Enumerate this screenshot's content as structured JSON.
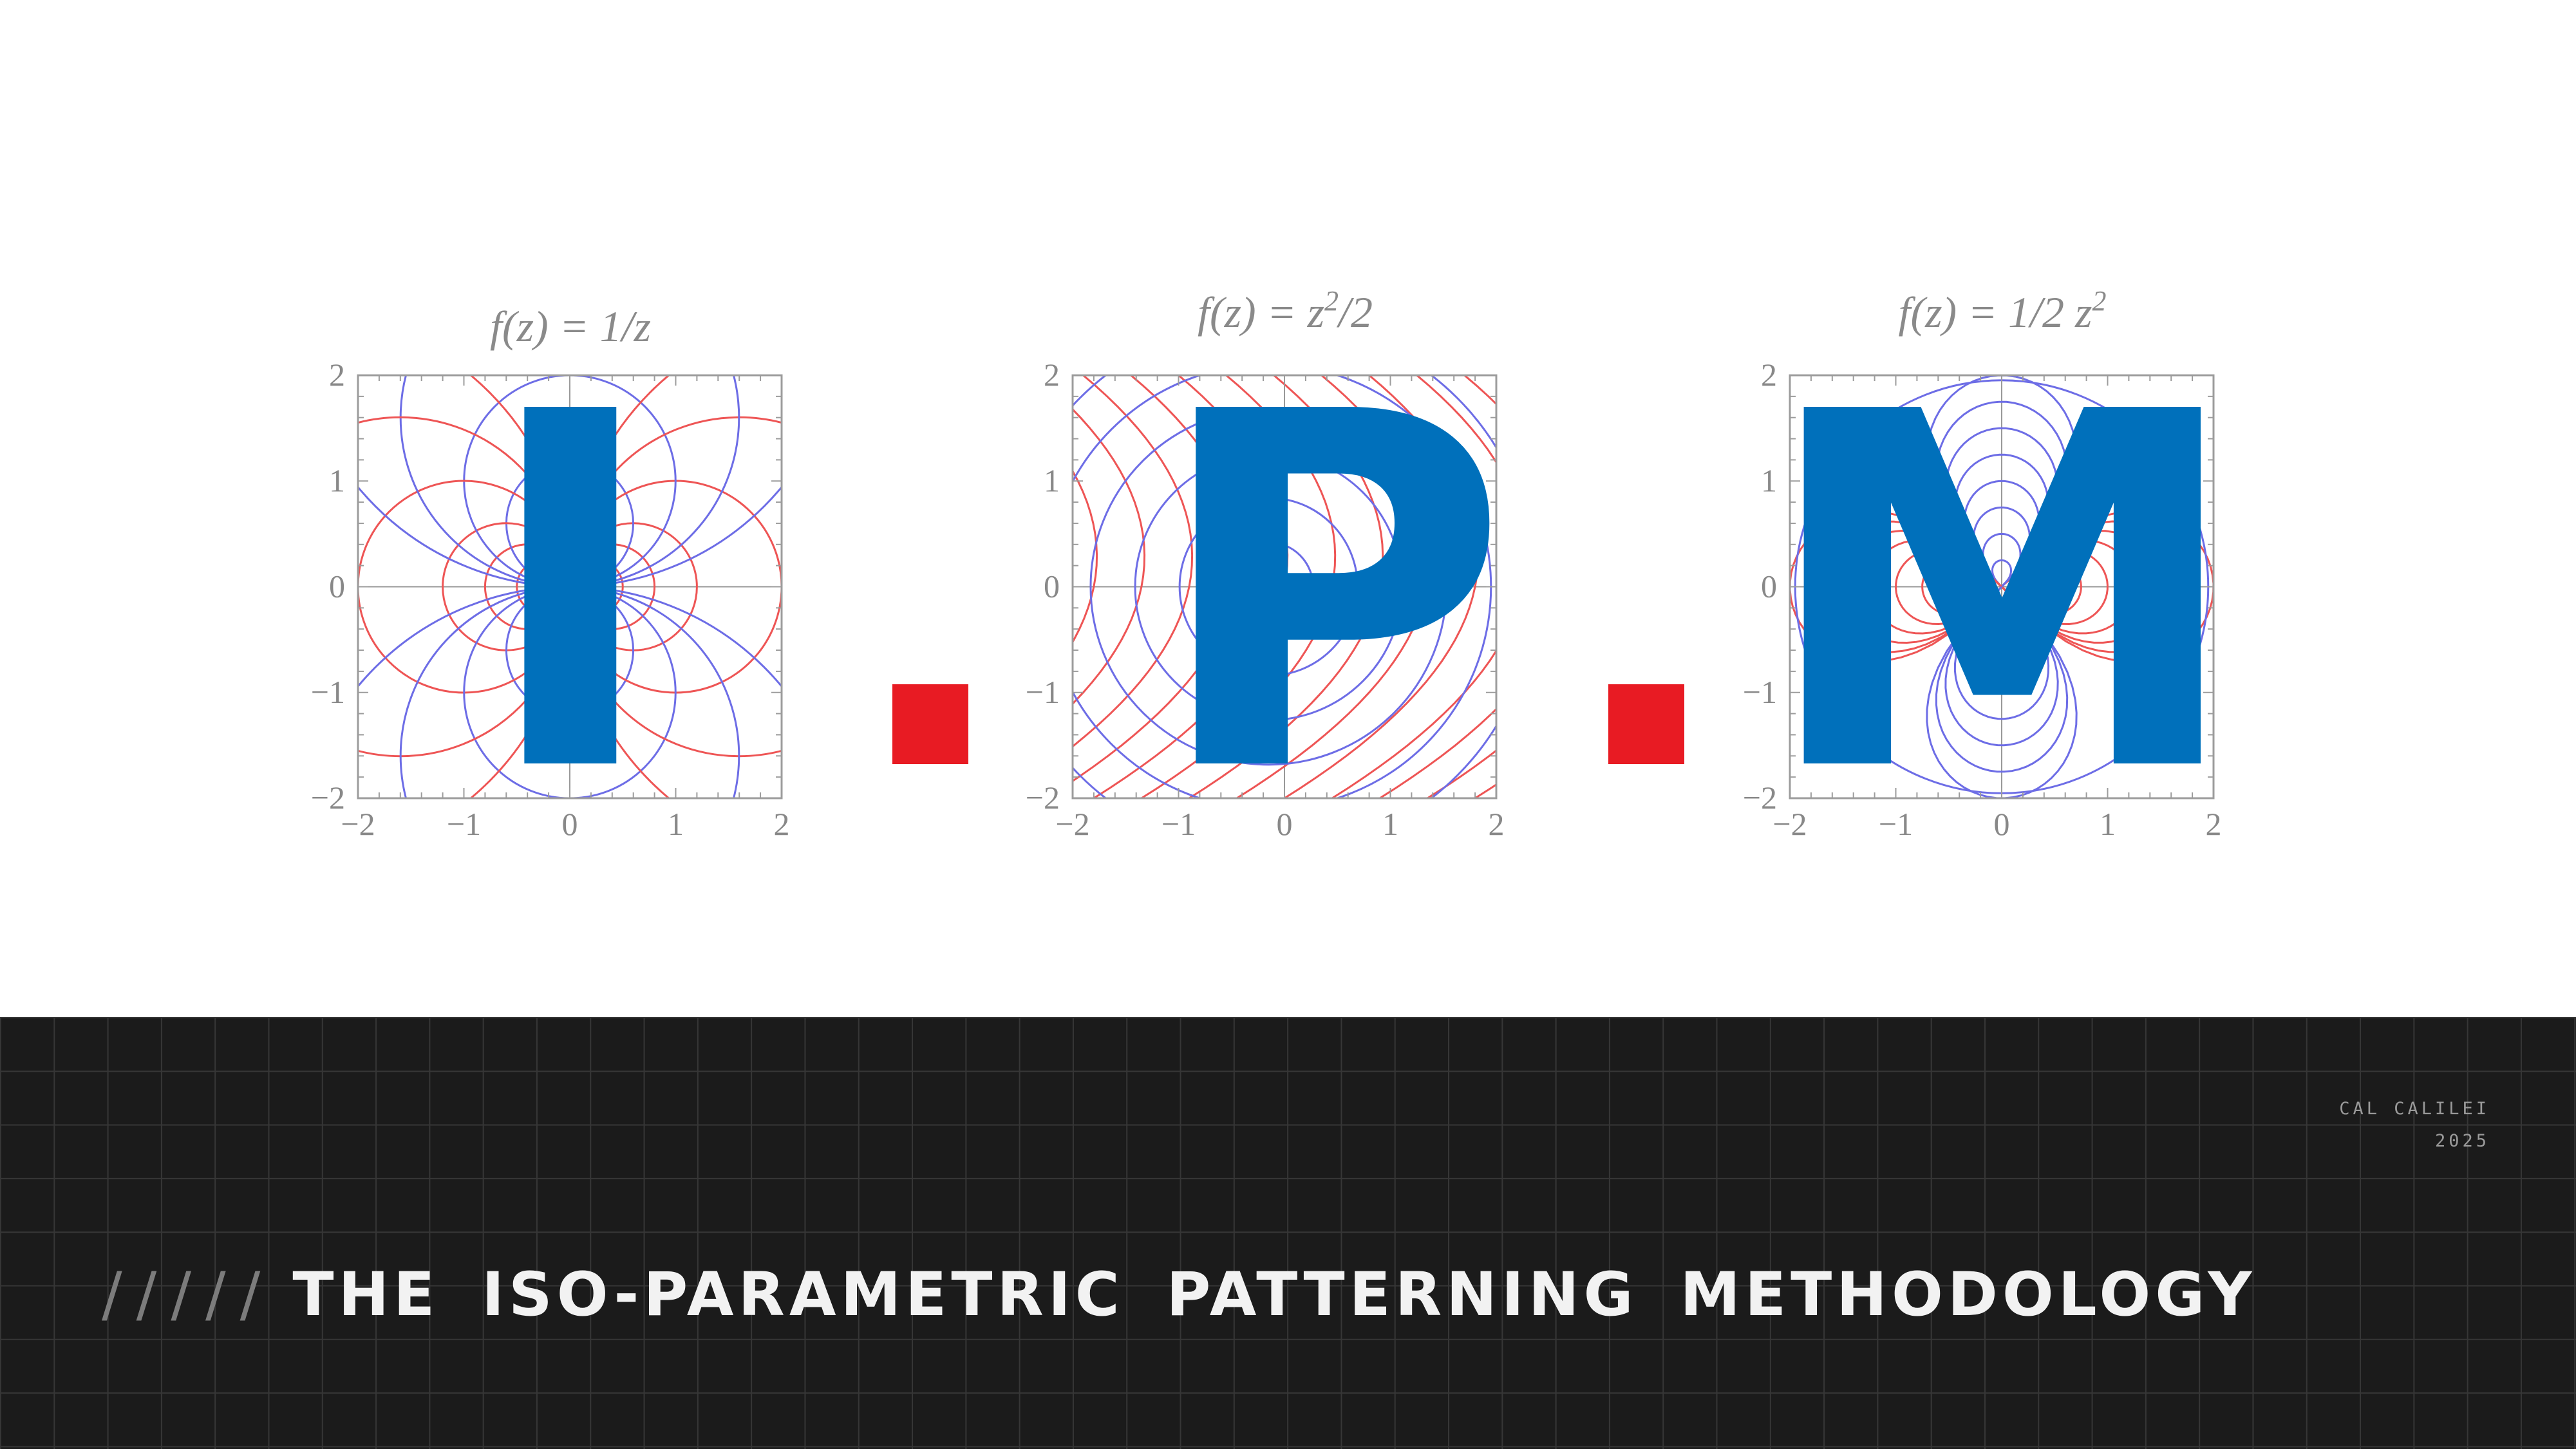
{
  "letters": [
    "I",
    "P",
    "M"
  ],
  "panels": [
    {
      "formula": {
        "base": "f(z) = 1/z",
        "parts": [
          "f(z) = 1/z"
        ]
      },
      "letter": "I",
      "xlim": [
        -2,
        2
      ],
      "ylim": [
        -2,
        2
      ],
      "xticks": [
        "−2",
        "−1",
        "0",
        "1",
        "2"
      ],
      "yticks": [
        "2",
        "1",
        "0",
        "−1",
        "−2"
      ]
    },
    {
      "formula": {
        "parts": [
          "f(z) = z",
          "2",
          "/2"
        ]
      },
      "letter": "P",
      "xlim": [
        -2,
        2
      ],
      "ylim": [
        -2,
        2
      ],
      "xticks": [
        "−2",
        "−1",
        "0",
        "1",
        "2"
      ],
      "yticks": [
        "2",
        "1",
        "0",
        "−1",
        "−2"
      ]
    },
    {
      "formula": {
        "parts": [
          "f(z) = 1/2 z",
          "2",
          ""
        ]
      },
      "letter": "M",
      "xlim": [
        -2,
        2
      ],
      "ylim": [
        -2,
        2
      ],
      "xticks": [
        "−2",
        "−1",
        "0",
        "1",
        "2"
      ],
      "yticks": [
        "2",
        "1",
        "0",
        "−1",
        "−2"
      ]
    }
  ],
  "colors": {
    "letter_blue": "#0070bb",
    "accent_red": "#e81b23",
    "curve_red": "#ee5555",
    "curve_blue": "#6d6de6",
    "banner_bg": "#1b1b1b"
  },
  "banner": {
    "slashes": "/////",
    "headline": "THE ISO-PARAMETRIC PATTERNING METHODOLOGY",
    "credit_name": "CAL CALILEI",
    "credit_year": "2025"
  }
}
